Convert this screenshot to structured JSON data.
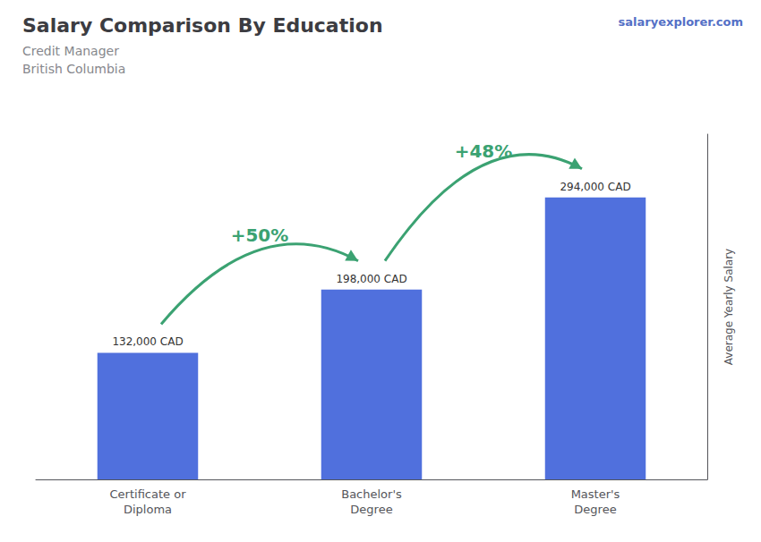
{
  "chart_data": {
    "type": "bar",
    "title": "Salary Comparison By Education",
    "subtitle": [
      "Credit Manager",
      "British Columbia"
    ],
    "ylabel": "Average Yearly Salary",
    "categories": [
      "Certificate or\nDiploma",
      "Bachelor's\nDegree",
      "Master's\nDegree"
    ],
    "values": [
      132000,
      198000,
      294000
    ],
    "value_labels": [
      "132,000 CAD",
      "198,000 CAD",
      "294,000 CAD"
    ],
    "data_labels": true,
    "annotations": [
      "+50%",
      "+48%"
    ],
    "watermark": "salaryexplorer.com",
    "ylim": [
      0,
      360000
    ],
    "grid": false,
    "tick_labels": false
  }
}
